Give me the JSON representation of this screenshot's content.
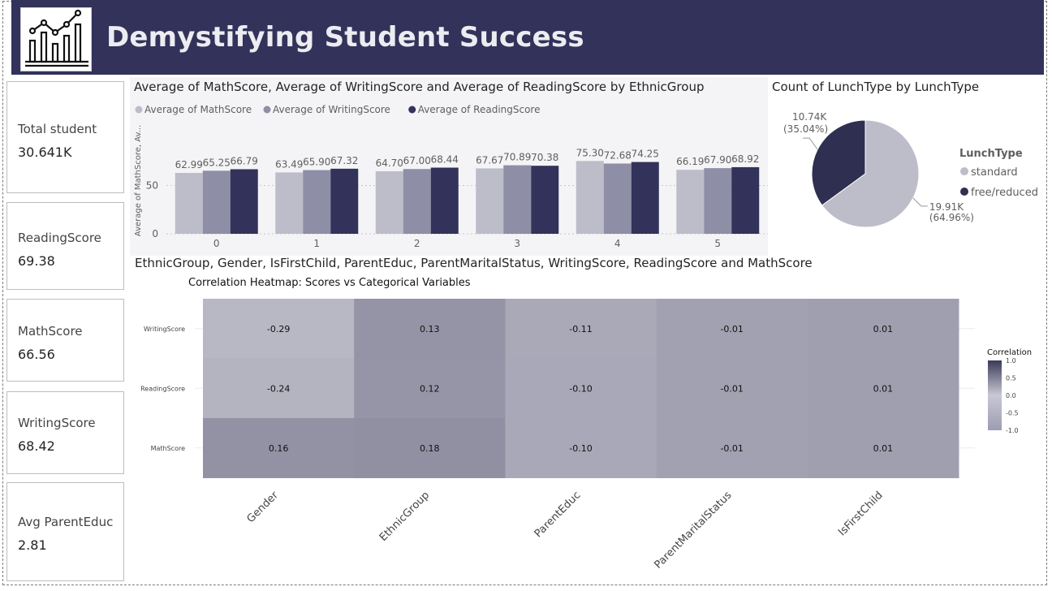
{
  "header": {
    "title": "Demystifying Student Success",
    "logo_icon": "chart-growth-icon"
  },
  "kpis": [
    {
      "label": "Total student",
      "value": "30.641K"
    },
    {
      "label": "ReadingScore",
      "value": "69.38"
    },
    {
      "label": "MathScore",
      "value": "66.56"
    },
    {
      "label": "WritingScore",
      "value": "68.42"
    },
    {
      "label": "Avg ParentEduc",
      "value": "2.81"
    }
  ],
  "colors": {
    "header_bg": "#32325a",
    "math": "#bdbdca",
    "writing": "#8e8ea6",
    "reading": "#32325a",
    "pie_standard": "#bdbdca",
    "pie_free": "#2f2f52"
  },
  "chart_data": [
    {
      "type": "bar",
      "title": "Average of MathScore, Average of WritingScore and Average of ReadingScore by EthnicGroup",
      "ylabel": "Average of MathScore, Av...",
      "categories": [
        "0",
        "1",
        "2",
        "3",
        "4",
        "5"
      ],
      "series": [
        {
          "name": "Average of MathScore",
          "values": [
            62.99,
            63.49,
            64.7,
            67.67,
            75.3,
            66.19
          ],
          "labels": [
            "62.99",
            "63.49",
            "64.70",
            "67.67",
            "75.30",
            "66.19"
          ]
        },
        {
          "name": "Average of WritingScore",
          "values": [
            65.25,
            65.9,
            67.0,
            70.89,
            72.68,
            67.9
          ],
          "labels": [
            "65.25",
            "65.90",
            "67.00",
            "70.89",
            "72.68",
            "67.90"
          ]
        },
        {
          "name": "Average of ReadingScore",
          "values": [
            66.79,
            67.32,
            68.44,
            70.38,
            74.25,
            68.92
          ],
          "labels": [
            "66.79",
            "67.32",
            "68.44",
            "70.38",
            "74.25",
            "68.92"
          ]
        }
      ],
      "yticks": [
        "0",
        "50"
      ],
      "ylim": [
        0,
        110
      ],
      "legend": "top-left"
    },
    {
      "type": "pie",
      "title": "Count of LunchType by LunchType",
      "legend_title": "LunchType",
      "slices": [
        {
          "name": "standard",
          "value": 19.91,
          "label": "19.91K",
          "pct": "(64.96%)"
        },
        {
          "name": "free/reduced",
          "value": 10.74,
          "label": "10.74K",
          "pct": "(35.04%)"
        }
      ],
      "legend": "right"
    },
    {
      "type": "heatmap",
      "visual_title": "EthnicGroup, Gender, IsFirstChild, ParentEduc, ParentMaritalStatus, WritingScore, ReadingScore and MathScore",
      "title": "Correlation Heatmap: Scores vs Categorical Variables",
      "x": [
        "Gender",
        "EthnicGroup",
        "ParentEduc",
        "ParentMaritalStatus",
        "IsFirstChild"
      ],
      "y": [
        "WritingScore",
        "ReadingScore",
        "MathScore"
      ],
      "z": [
        [
          -0.29,
          0.13,
          -0.11,
          -0.01,
          0.01
        ],
        [
          -0.24,
          0.12,
          -0.1,
          -0.01,
          0.01
        ],
        [
          0.16,
          0.18,
          -0.1,
          -0.01,
          0.01
        ]
      ],
      "z_labels": [
        [
          "-0.29",
          "0.13",
          "-0.11",
          "-0.01",
          "0.01"
        ],
        [
          "-0.24",
          "0.12",
          "-0.10",
          "-0.01",
          "0.01"
        ],
        [
          "0.16",
          "0.18",
          "-0.10",
          "-0.01",
          "0.01"
        ]
      ],
      "colorbar_title": "Correlation",
      "colorbar_ticks": [
        "1.0",
        "0.5",
        "0.0",
        "-0.5",
        "-1.0"
      ],
      "zlim": [
        -1,
        1
      ]
    }
  ]
}
